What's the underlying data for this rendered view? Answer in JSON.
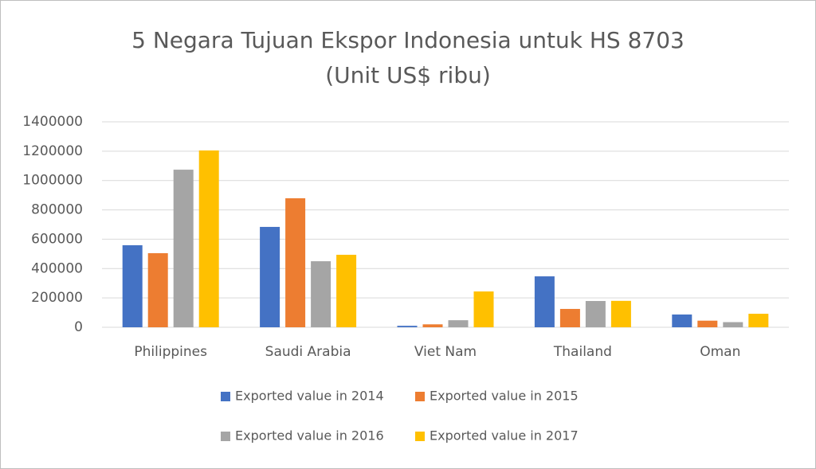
{
  "chart_data": {
    "type": "bar",
    "title": "5 Negara Tujuan Ekspor Indonesia untuk HS 8703",
    "subtitle": "(Unit US$ ribu)",
    "categories": [
      "Philippines",
      "Saudi Arabia",
      "Viet Nam",
      "Thailand",
      "Oman"
    ],
    "series": [
      {
        "name": "Exported value in 2014",
        "color": "#4472c4",
        "values": [
          559000,
          684000,
          10000,
          347000,
          87000
        ]
      },
      {
        "name": "Exported value in 2015",
        "color": "#ed7d31",
        "values": [
          505000,
          879000,
          20000,
          125000,
          45000
        ]
      },
      {
        "name": "Exported value in 2016",
        "color": "#a5a5a5",
        "values": [
          1074000,
          450000,
          48000,
          179000,
          35000
        ]
      },
      {
        "name": "Exported value in 2017",
        "color": "#ffc000",
        "values": [
          1205000,
          494000,
          244000,
          180000,
          92000
        ]
      }
    ],
    "ylim": [
      0,
      1400000
    ],
    "yticks": [
      0,
      200000,
      400000,
      600000,
      800000,
      1000000,
      1200000,
      1400000
    ],
    "grid": true,
    "legend": "bottom"
  }
}
